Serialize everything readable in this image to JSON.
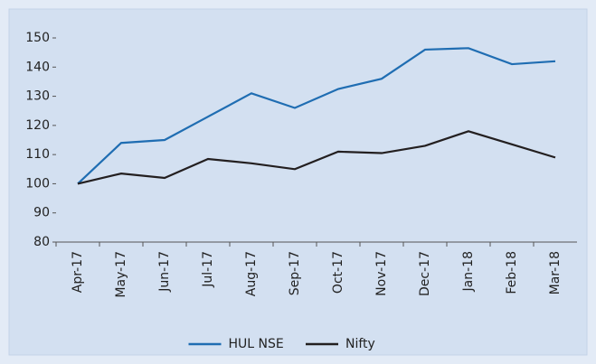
{
  "chart_data": {
    "type": "line",
    "categories": [
      "Apr-17",
      "May-17",
      "Jun-17",
      "Jul-17",
      "Aug-17",
      "Sep-17",
      "Oct-17",
      "Nov-17",
      "Dec-17",
      "Jan-18",
      "Feb-18",
      "Mar-18"
    ],
    "series": [
      {
        "name": "HUL NSE",
        "color": "#1f6db2",
        "values": [
          100,
          114,
          115,
          123,
          131,
          126,
          132.5,
          136,
          146,
          146.5,
          141,
          142
        ]
      },
      {
        "name": "Nifty",
        "color": "#231f20",
        "values": [
          100,
          103.5,
          102,
          108.5,
          107,
          105,
          111,
          110.5,
          113,
          118,
          113.5,
          109
        ]
      }
    ],
    "ylim": [
      80,
      150
    ],
    "yticks": [
      80,
      90,
      100,
      110,
      120,
      130,
      140,
      150
    ],
    "grid": false,
    "legend": "bottom"
  }
}
